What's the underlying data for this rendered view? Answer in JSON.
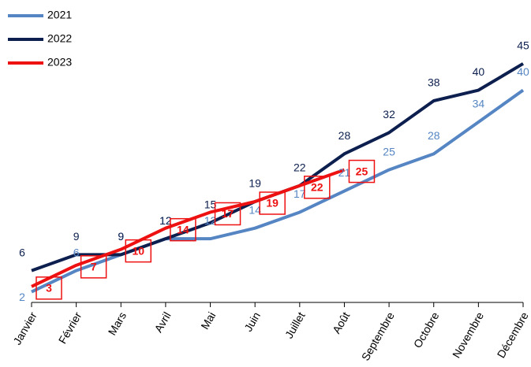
{
  "chart_data": {
    "type": "line",
    "categories": [
      "Janvier",
      "Février",
      "Mars",
      "Avril",
      "Mai",
      "Juin",
      "Juillet",
      "Août",
      "Septembre",
      "Octobre",
      "Novembre",
      "Décembre"
    ],
    "series": [
      {
        "name": "2021",
        "color": "#5585c3",
        "values": [
          2,
          6,
          9,
          12,
          12,
          14,
          17,
          21,
          25,
          28,
          34,
          40
        ]
      },
      {
        "name": "2022",
        "color": "#0c1f4e",
        "values": [
          6,
          9,
          9,
          12,
          15,
          19,
          22,
          28,
          32,
          38,
          40,
          45
        ]
      },
      {
        "name": "2023",
        "color": "#ee1111",
        "values": [
          3,
          7,
          10,
          14,
          17,
          19,
          22,
          25,
          null,
          null,
          null,
          null
        ]
      }
    ],
    "ylim": [
      0,
      57
    ],
    "legend": "top-left"
  }
}
